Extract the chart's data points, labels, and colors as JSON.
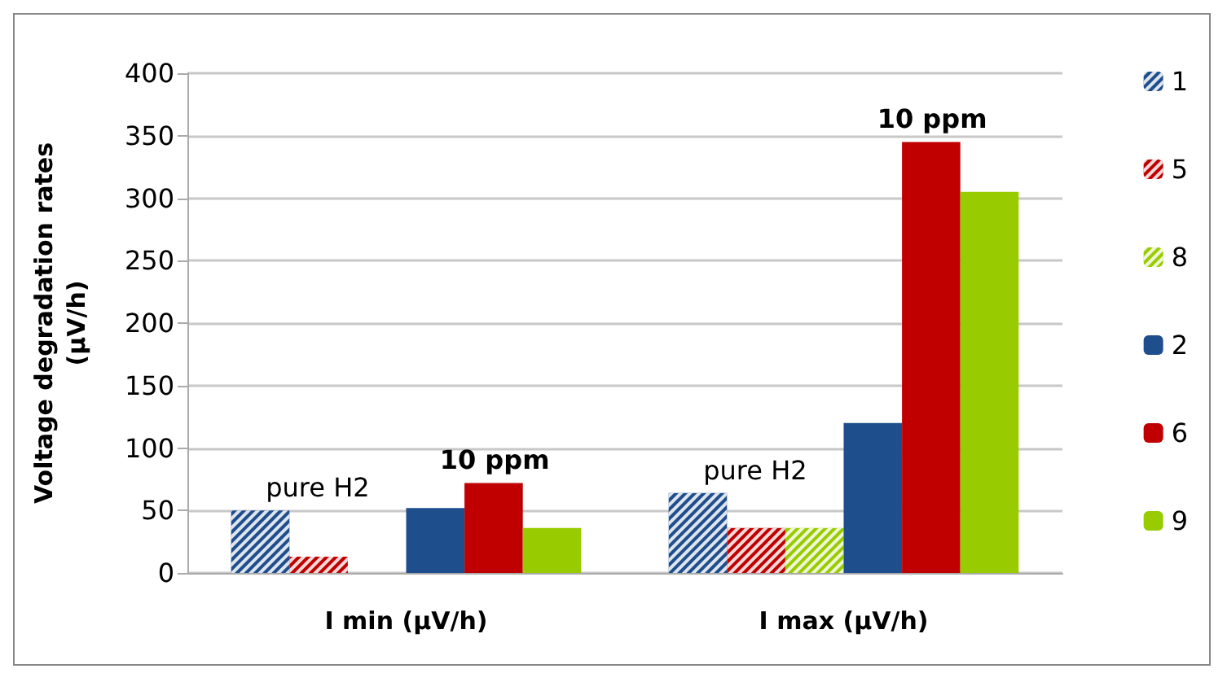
{
  "chart_data": {
    "type": "bar",
    "ylabel": "Voltage degradation rates\n(µV/h)",
    "categories": [
      "I min (µV/h)",
      "I max (µV/h)"
    ],
    "series": [
      {
        "name": "1",
        "color": "#1f4e8c",
        "values": [
          50,
          64
        ]
      },
      {
        "name": "5",
        "color": "#c00000",
        "values": [
          13,
          36
        ]
      },
      {
        "name": "8",
        "color": "#99cc00",
        "values": [
          null,
          36
        ]
      },
      {
        "name": "2",
        "color": "#1f4e8c",
        "values": [
          52,
          120
        ]
      },
      {
        "name": "6",
        "color": "#c00000",
        "values": [
          72,
          345
        ]
      },
      {
        "name": "9",
        "color": "#99cc00",
        "values": [
          36,
          305
        ]
      }
    ],
    "ylim": [
      0,
      400
    ],
    "yticks": [
      0,
      50,
      100,
      150,
      200,
      250,
      300,
      350,
      400
    ],
    "grid": "y",
    "legend": "right",
    "annotations": [
      "pure H2",
      "10 ppm",
      "pure H2",
      "10 ppm"
    ]
  }
}
